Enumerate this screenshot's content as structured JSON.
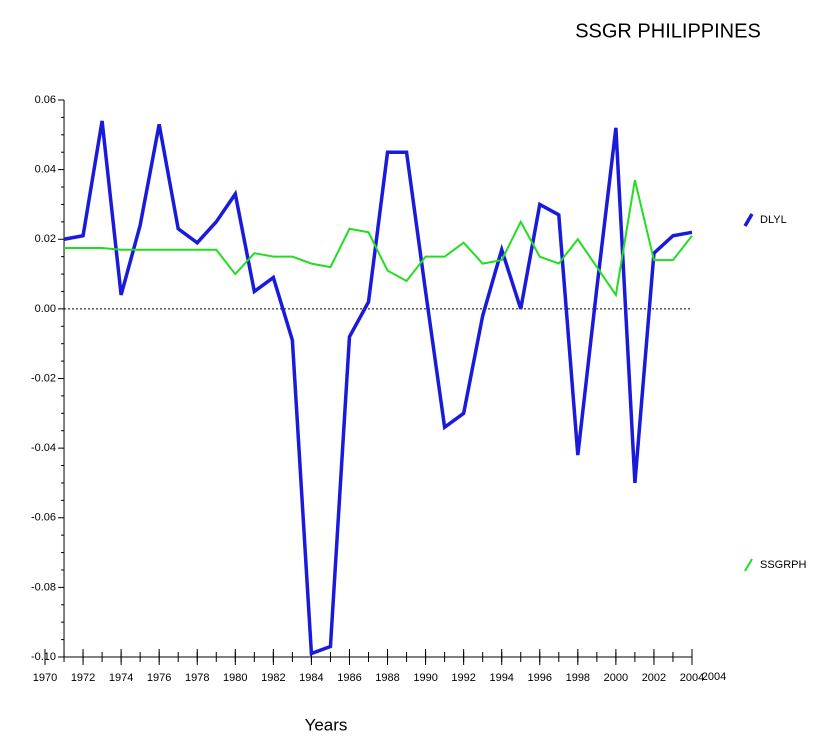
{
  "chart_data": {
    "type": "line",
    "title": "SSGR PHILIPPINES",
    "x_label": "Years",
    "x_axis_end_label": "2004",
    "x": [
      1971,
      1972,
      1973,
      1974,
      1975,
      1976,
      1977,
      1978,
      1979,
      1980,
      1981,
      1982,
      1983,
      1984,
      1985,
      1986,
      1987,
      1988,
      1989,
      1990,
      1991,
      1992,
      1993,
      1994,
      1995,
      1996,
      1997,
      1998,
      1999,
      2000,
      2001,
      2002,
      2003,
      2004
    ],
    "series": [
      {
        "name": "DLYL",
        "color": "#1a1adc",
        "values": [
          0.02,
          0.021,
          0.054,
          0.004,
          0.024,
          0.053,
          0.023,
          0.019,
          0.025,
          0.033,
          0.005,
          0.009,
          -0.009,
          -0.099,
          -0.097,
          -0.008,
          0.002,
          0.045,
          0.045,
          0.005,
          -0.034,
          -0.03,
          -0.002,
          0.017,
          0.0,
          0.03,
          0.027,
          -0.042,
          0.006,
          0.052,
          -0.05,
          0.016,
          0.021,
          0.022
        ]
      },
      {
        "name": "SSGRPH",
        "color": "#22dd22",
        "values": [
          0.0175,
          0.0175,
          0.0175,
          0.017,
          0.017,
          0.017,
          0.017,
          0.017,
          0.017,
          0.01,
          0.016,
          0.015,
          0.015,
          0.013,
          0.012,
          0.023,
          0.022,
          0.011,
          0.008,
          0.015,
          0.015,
          0.019,
          0.013,
          0.014,
          0.025,
          0.015,
          0.013,
          0.02,
          0.012,
          0.004,
          0.037,
          0.014,
          0.014,
          0.021
        ]
      }
    ],
    "xlim": [
      1970,
      2004
    ],
    "xticks": [
      1970,
      1972,
      1974,
      1976,
      1978,
      1980,
      1982,
      1984,
      1986,
      1988,
      1990,
      1992,
      1994,
      1996,
      1998,
      2000,
      2002,
      2004
    ],
    "ylim": [
      -0.1,
      0.06
    ],
    "yticks": [
      {
        "value": 0.06,
        "label": "0.06"
      },
      {
        "value": 0.04,
        "label": "0.04"
      },
      {
        "value": 0.02,
        "label": "0.02"
      },
      {
        "value": 0,
        "label": "0.00"
      },
      {
        "value": -0.02,
        "label": "-0.02"
      },
      {
        "value": -0.04,
        "label": "-0.04"
      },
      {
        "value": -0.06,
        "label": "-0.06"
      },
      {
        "value": -0.08,
        "label": "-0.08"
      },
      {
        "value": -0.1,
        "label": "-0.10"
      }
    ],
    "zero_line": true,
    "legend": "right"
  }
}
